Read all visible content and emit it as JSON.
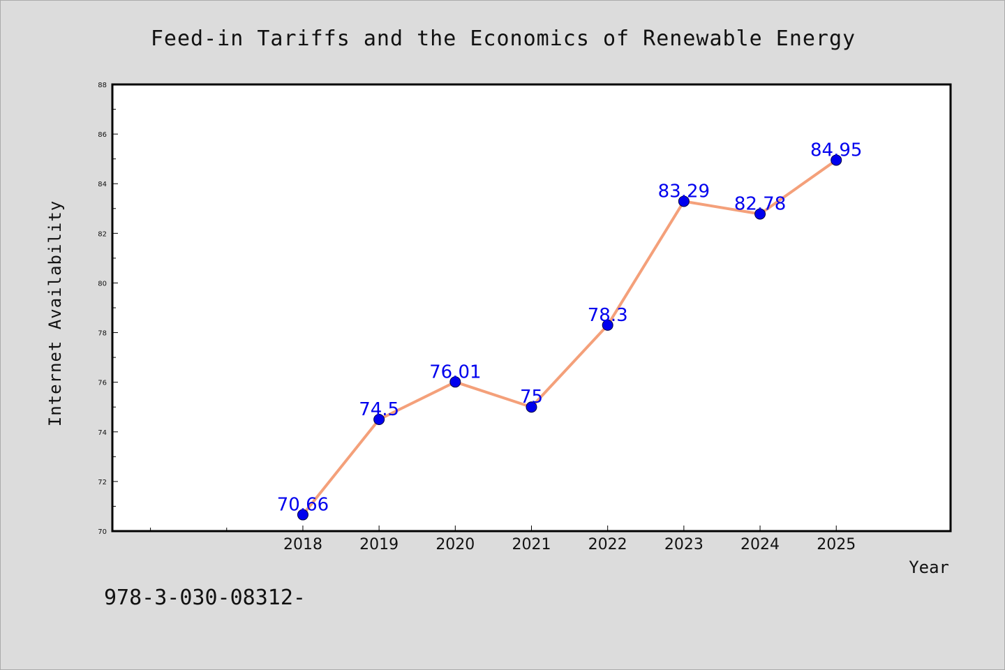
{
  "chart_data": {
    "type": "line",
    "title": "Feed-in Tariffs and the Economics of Renewable Energy",
    "xlabel": "Year",
    "ylabel": "Internet Availability",
    "x_ticks": [
      "2018",
      "2019",
      "2020",
      "2021",
      "2022",
      "2023",
      "2024",
      "2025"
    ],
    "x_range": [
      2015.5,
      2026.5
    ],
    "ylim": [
      70,
      88
    ],
    "y_ticks": [
      "70",
      "72",
      "74",
      "76",
      "78",
      "80",
      "82",
      "84",
      "86",
      "88"
    ],
    "grid": false,
    "series": [
      {
        "points": [
          {
            "x": 2018,
            "y": 70.66,
            "label": "70.66"
          },
          {
            "x": 2019,
            "y": 74.5,
            "label": "74.5"
          },
          {
            "x": 2020,
            "y": 76.01,
            "label": "76.01"
          },
          {
            "x": 2021,
            "y": 75,
            "label": "75"
          },
          {
            "x": 2022,
            "y": 78.3,
            "label": "78.3"
          },
          {
            "x": 2023,
            "y": 83.29,
            "label": "83.29"
          },
          {
            "x": 2024,
            "y": 82.78,
            "label": "82.78"
          },
          {
            "x": 2025,
            "y": 84.95,
            "label": "84.95"
          }
        ]
      }
    ],
    "colors": {
      "line": "#f4a07a",
      "marker": "#0000ee",
      "label": "#0000ee",
      "axis": "#000000",
      "background": "#dcdcdc",
      "plot_background": "#ffffff"
    }
  },
  "footer_text": "978-3-030-08312-"
}
